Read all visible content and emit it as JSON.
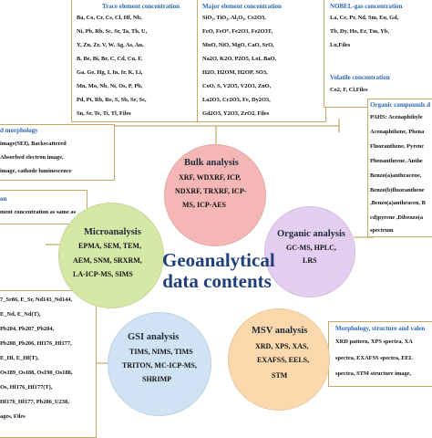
{
  "center": {
    "line1": "Geoanalytical",
    "line2": "data contents"
  },
  "circles": {
    "bulk": {
      "title": "Bulk analysis",
      "lines": [
        "XRF, WDXRF, ICP,",
        "NDXRF, TRXRF, ICP-",
        "MS, ICP-AES"
      ]
    },
    "organic": {
      "title": "Organic analysis",
      "lines": [
        "GC-MS, HPLC,",
        "LRS"
      ]
    },
    "micro": {
      "title": "Microanalysis",
      "lines": [
        "EPMA, SEM, TEM,",
        "AEM, SNM, SRXRM,",
        "LA-ICP-MS, SIMS"
      ]
    },
    "gsi": {
      "title": "GSI analysis",
      "lines": [
        "TIMS, NIMS, TIMS",
        "TRITON, MC-ICP-MS,",
        "SHRIMP"
      ]
    },
    "msv": {
      "title": "MSV analysis",
      "lines": [
        "XRD, XPS, XAS,",
        "EXAFSS, EELS,",
        "STM"
      ]
    }
  },
  "trace": {
    "title": "Trace element concentration",
    "lines": [
      "Ba, Co, Cr, Cs, Cl, Hf, Nb,",
      "Ni, Pb, Rb, Sc, Sr, Ta, Th, U,",
      "Y,  Zn, Zr, V, W, Ag, As, Au,",
      "B, Be, Bi, Br, C, Cd, Cu, F,",
      "Ga, Ge, Hg, I, In, Ir, K, Li,",
      "Mn, Mo, Nb, Ni, Os, P, Pb,",
      "Pd, Pt, Rb, Re, S, Sb, Se, Sc,",
      "Sn, Sr, Te, Ti, Tl, Files"
    ]
  },
  "major": {
    "title": "Major element concentration",
    "lines": [
      "SiO₂, TiO₂, Al₂O₃, Ce2O3,",
      "FeO, FeOᵀ, Fe2O3, Fe2O3T,",
      "MnO, NiO, MgO, CaO, SrO,",
      "Na2O, K2O, P2O5, LoI, BaO,",
      "H2O, H2OM, H2OP, SO3,",
      "CoO, S, V2O5, V2O3, ZnO,",
      "La2O3, Cr2O3, Fe, Dy2O3,",
      "Gd2O3, Y2O3, ZrO2, Files"
    ]
  },
  "nobel": {
    "title": "NOBEL-gas concentration",
    "lines": [
      "La, Ce, Pr, Nd, Sm, Eu, Gd,",
      "Tb, Dy, Ho, Er, Tm, Yb,",
      "Lu,Files"
    ]
  },
  "volatile": {
    "title": "Volatile concentration",
    "lines": [
      "Co2, F, Cl,Files"
    ]
  },
  "organic_compounds": {
    "title": "Organic compounds d",
    "lines": [
      "PAHS: Acenaphthyle",
      "Acenaphthene, Phena",
      "Fluoranthene, Pyrenc",
      "Phenanthrene, Anthe",
      "Benzo(a)anthracene,",
      "Benzo(b)fluoranthene",
      ",Benzo(a)anthracen, B",
      "cd)pyrene ,Dibenzo(a",
      "spectrum"
    ]
  },
  "morph_left": {
    "title": "d morphology",
    "lines": [
      "image(SEI), Backscattered",
      "Absorbed electron image,",
      "image, cathode luminescence"
    ]
  },
  "micro_left": {
    "title": "on",
    "lines": [
      "ment concentration as same as"
    ]
  },
  "gsi_left": {
    "lines": [
      "7_Sr86, E_Sr, Nd143_Nd144,",
      "E_Nd, E_Nd(T),",
      "Pb204, Pb207_Pb204,",
      "Pb208_Pb206, Hf176_Hf177,",
      "E_Hf, E_Hf(T),",
      "Os189_Os188, Os190_Os188,",
      "Os, Hf176_Hf177(T),",
      "Hf176_Hf177, Pb206_U238,",
      "ages, Files"
    ]
  },
  "msv_right": {
    "title": "Morphology, structure and valen",
    "lines": [
      "XRD pattern, XPS spectra, XA",
      "spectra,  EXAFSS spectra, EEL",
      "spectra, STM structure image,"
    ]
  },
  "colors": {
    "bulk": "#f4b7b6",
    "organic": "#e3cdf0",
    "micro": "#d6e8a6",
    "gsi": "#cfe3f5",
    "msv": "#fbd9ad",
    "frame": "#c9a76a",
    "title_blue": "#2a67b1",
    "center_blue": "#1e3f7a"
  }
}
